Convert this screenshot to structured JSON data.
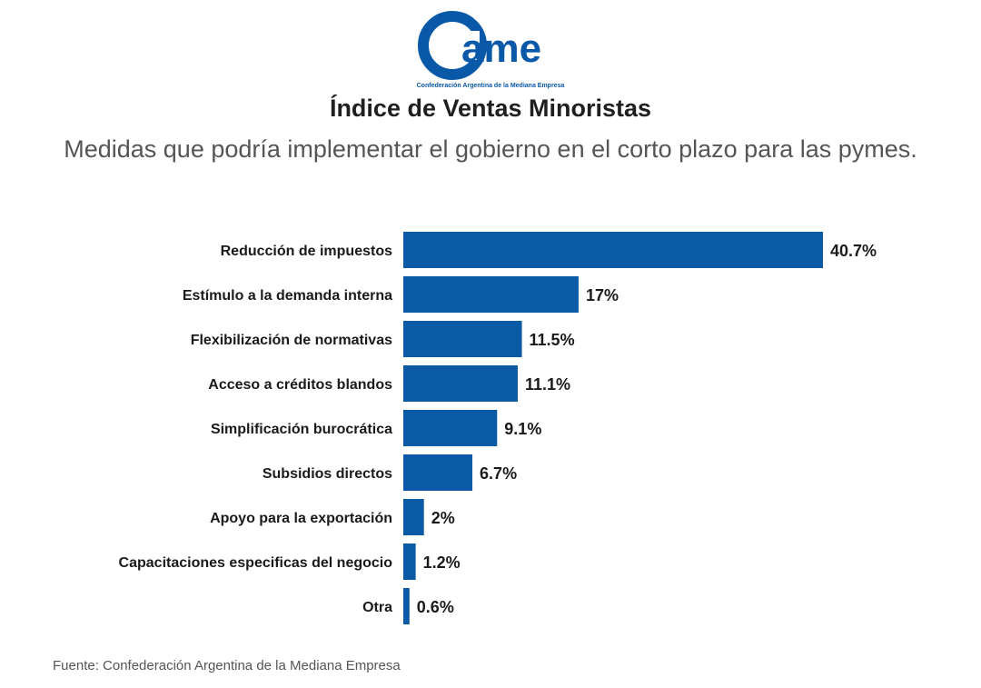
{
  "logo": {
    "text": "ame",
    "tagline": "Confederación Argentina de la Mediana Empresa",
    "color": "#0a58a8"
  },
  "title": "Índice de Ventas Minoristas",
  "subtitle": "Medidas que podría implementar el gobierno en el corto plazo para las pymes.",
  "source": "Fuente: Confederación Argentina de la Mediana Empresa",
  "colors": {
    "bar": "#0b5aa5"
  },
  "chart_data": {
    "type": "bar",
    "orientation": "horizontal",
    "categories": [
      "Reducción de impuestos",
      "Estímulo a la demanda interna",
      "Flexibilización de normativas",
      "Acceso a créditos blandos",
      "Simplificación burocrática",
      "Subsidios directos",
      "Apoyo para la exportación",
      "Capacitaciones especificas del negocio",
      "Otra"
    ],
    "values": [
      40.7,
      17,
      11.5,
      11.1,
      9.1,
      6.7,
      2,
      1.2,
      0.6
    ],
    "value_labels": [
      "40.7%",
      "17%",
      "11.5%",
      "11.1%",
      "9.1%",
      "6.7%",
      "2%",
      "1.2%",
      "0.6%"
    ],
    "xlim": [
      0,
      40.7
    ],
    "grid": false,
    "legend": "none"
  }
}
